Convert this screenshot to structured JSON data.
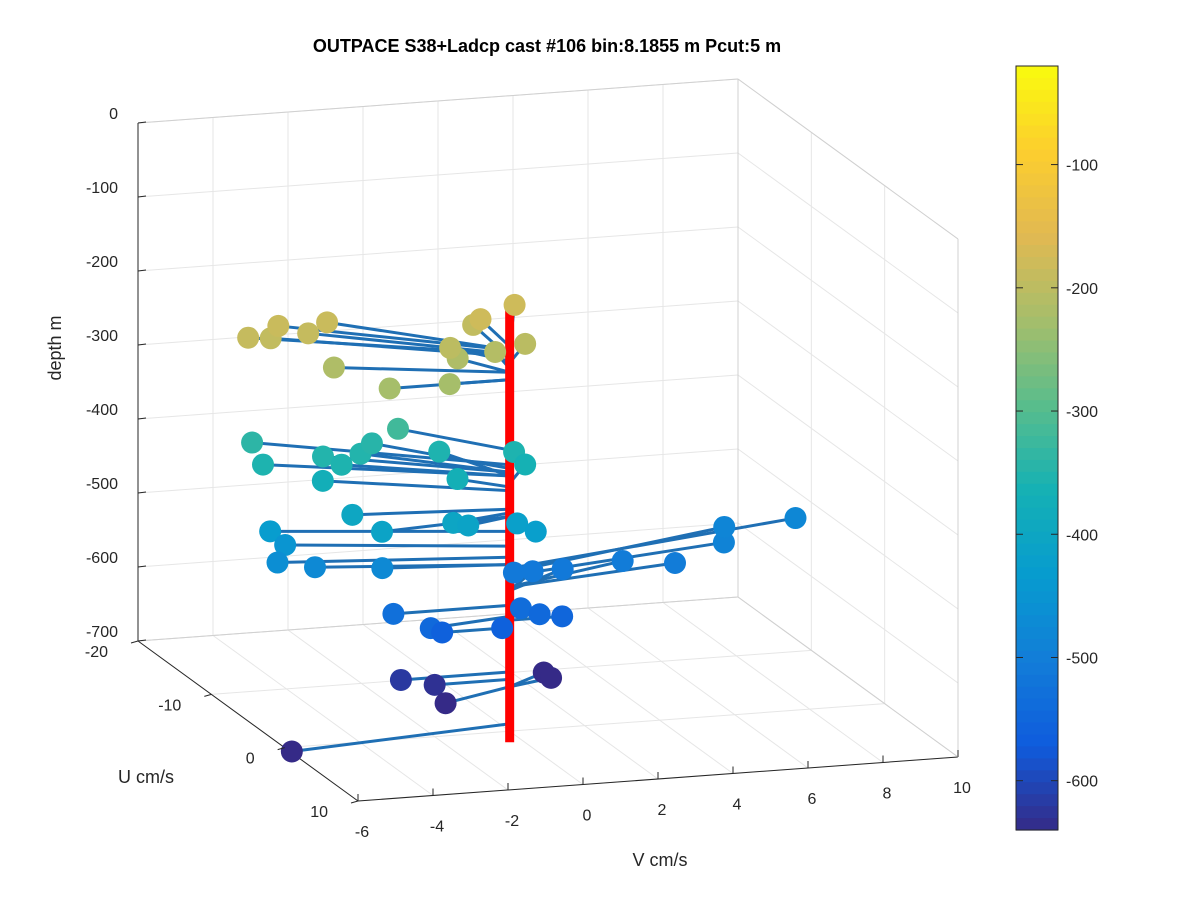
{
  "chart_data": {
    "type": "scatter",
    "title": "OUTPACE S38+Ladcp cast #106 bin:8.1855 m  Pcut:5 m",
    "xlabel": "V cm/s",
    "ylabel": "U cm/s",
    "zlabel": "depth m",
    "view": "3d",
    "grid": true,
    "xlim": [
      -6,
      10
    ],
    "ylim": [
      -20,
      10
    ],
    "zlim": [
      -700,
      0
    ],
    "xticks": [
      "-6",
      "-4",
      "-2",
      "0",
      "2",
      "4",
      "6",
      "8",
      "10"
    ],
    "yticks": [
      "-20",
      "-10",
      "0",
      "10"
    ],
    "zticks": [
      "0",
      "-100",
      "-200",
      "-300",
      "-400",
      "-500",
      "-600",
      "-700"
    ],
    "colorbar": {
      "ticks": [
        "-100",
        "-200",
        "-300",
        "-400",
        "-500",
        "-600"
      ],
      "range": [
        -640,
        -20
      ],
      "colormap": "parula"
    },
    "mean_profile": {
      "color": "#ff0000",
      "top_depth": -120,
      "bottom_depth": -715
    },
    "series": [
      {
        "values": [
          [
            -5.8,
            -6,
            -190
          ],
          [
            -5.2,
            -6,
            -193
          ],
          [
            -4.8,
            -7,
            -185
          ],
          [
            -4.2,
            -6,
            -190
          ],
          [
            -3.5,
            -7,
            -185
          ],
          [
            -4.1,
            -3,
            -215
          ],
          [
            -3.2,
            0,
            -225
          ],
          [
            -1.6,
            0,
            -225
          ],
          [
            -0.8,
            -3,
            -215
          ],
          [
            0.2,
            -3,
            -210
          ],
          [
            0.2,
            -6,
            -195
          ],
          [
            0.2,
            -5,
            -180
          ],
          [
            -1.0,
            -3,
            -200
          ],
          [
            1.0,
            -3,
            -202
          ],
          [
            1.5,
            -7,
            -180
          ],
          [
            -2.0,
            -5,
            -320
          ],
          [
            -5.5,
            -7,
            -340
          ],
          [
            -5.6,
            -5,
            -355
          ],
          [
            -4.0,
            -5,
            -350
          ],
          [
            -3.7,
            -4,
            -355
          ],
          [
            -3.0,
            -5,
            -350
          ],
          [
            -2.5,
            -6,
            -345
          ],
          [
            -0.9,
            -5,
            -355
          ],
          [
            -1.0,
            -2,
            -370
          ],
          [
            -4.2,
            -4,
            -375
          ],
          [
            -4.0,
            -1,
            -400
          ],
          [
            -3.6,
            1,
            -410
          ],
          [
            -1.7,
            1,
            -405
          ],
          [
            -1.3,
            1,
            -410
          ],
          [
            0.2,
            0,
            -420
          ],
          [
            0.5,
            1,
            -425
          ],
          [
            0.9,
            -4,
            -355
          ],
          [
            1.0,
            -3,
            -365
          ],
          [
            -5.8,
            -3,
            -430
          ],
          [
            -5.4,
            -3,
            -450
          ],
          [
            -5.8,
            -2,
            -465
          ],
          [
            -4.8,
            -2,
            -475
          ],
          [
            -3.2,
            -1,
            -475
          ],
          [
            -3.1,
            0,
            -530
          ],
          [
            -2.3,
            1,
            -545
          ],
          [
            -1.8,
            0,
            -560
          ],
          [
            -0.2,
            0,
            -560
          ],
          [
            0.3,
            0,
            -535
          ],
          [
            0.7,
            -3,
            -510
          ],
          [
            1.2,
            -3,
            -510
          ],
          [
            2.0,
            -3,
            -510
          ],
          [
            3.6,
            -3,
            -505
          ],
          [
            4.8,
            -2,
            -505
          ],
          [
            6.3,
            -3,
            -490
          ],
          [
            6.7,
            -5,
            -485
          ],
          [
            8.6,
            -5,
            -480
          ],
          [
            0.8,
            0,
            -545
          ],
          [
            1.4,
            0,
            -550
          ],
          [
            -2.9,
            0,
            -620
          ],
          [
            -2.0,
            0,
            -630
          ],
          [
            -2.1,
            2,
            -640
          ],
          [
            1.3,
            -2,
            -640
          ],
          [
            1.3,
            -1,
            -640
          ],
          [
            -6.2,
            2,
            -690
          ]
        ]
      }
    ]
  }
}
